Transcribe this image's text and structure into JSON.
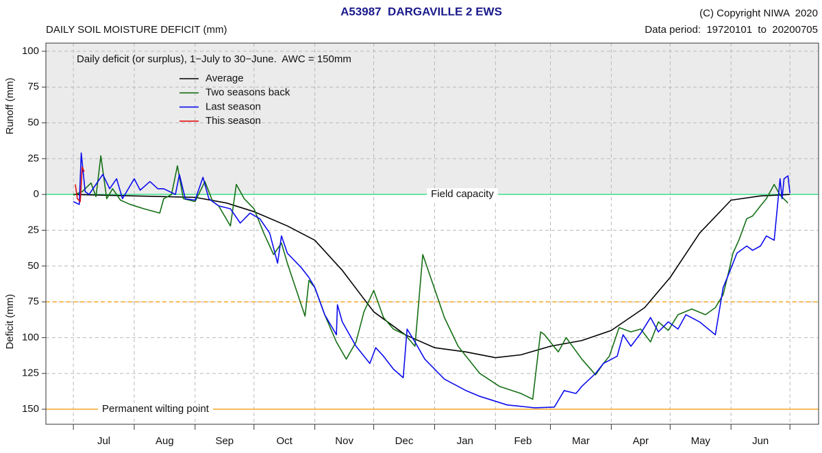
{
  "chart_data": {
    "type": "line",
    "title": "A53987  DARGAVILLE 2 EWS",
    "subtitle": "DAILY SOIL MOISTURE DEFICIT (mm)",
    "copyright": "(C) Copyright NIWA  2020",
    "data_period": "Data period:  19720101  to  20200705",
    "annotation": "Daily deficit (or surplus), 1−July to 30−June.  AWC = 150mm",
    "ylabel_top": "Runoff (mm)",
    "ylabel_bottom": "Deficit (mm)",
    "xlim": [
      -14,
      379.6
    ],
    "xticks": [
      0,
      31,
      62,
      92,
      123,
      153,
      184,
      215,
      243,
      274,
      304,
      335,
      365
    ],
    "months": [
      "Jul",
      "Aug",
      "Sep",
      "Oct",
      "Nov",
      "Dec",
      "Jan",
      "Feb",
      "Mar",
      "Apr",
      "May",
      "Jun"
    ],
    "ylim": [
      -160.5,
      105.7
    ],
    "yticks": [
      100,
      75,
      50,
      25,
      0,
      {
        "value": -25,
        "label": "25"
      },
      {
        "value": -50,
        "label": "50"
      },
      {
        "value": -75,
        "label": "75"
      },
      {
        "value": -100,
        "label": "100"
      },
      {
        "value": -125,
        "label": "125"
      },
      {
        "value": -150,
        "label": "150"
      }
    ],
    "grid": true,
    "surplus_background": "#ebebeb",
    "reference_lines": [
      {
        "value": 0,
        "label": "Field capacity",
        "color": "#3ee08a",
        "dashed": false
      },
      {
        "value": -150,
        "label": "Permanent wilting point",
        "color": "#f5a623",
        "dashed": false
      },
      {
        "value": -75,
        "color": "#f5a623",
        "dashed": true
      }
    ],
    "series": [
      {
        "name": "Average",
        "color": "#000000",
        "x": [
          0,
          31,
          62,
          78,
          92,
          109,
          123,
          137,
          153,
          169,
          184,
          200,
          215,
          228,
          243,
          259,
          274,
          291,
          304,
          319,
          335,
          350,
          365
        ],
        "values": [
          0,
          -1,
          -2,
          -6,
          -12,
          -22,
          -32,
          -53,
          -82,
          -98,
          -107,
          -110,
          -114,
          -112,
          -106,
          -102,
          -95,
          -79,
          -58,
          -27,
          -4,
          -1,
          0
        ]
      },
      {
        "name": "Two seasons back",
        "color": "#146e14",
        "x": [
          0,
          4.5,
          9,
          11.5,
          14,
          17,
          20,
          24,
          29,
          36,
          44,
          46,
          50,
          53,
          56,
          62,
          67,
          71,
          74,
          80,
          83,
          87,
          92,
          97,
          102,
          106,
          109,
          118,
          120,
          123,
          128,
          134,
          139,
          144,
          148,
          153,
          158,
          163,
          169,
          174,
          178,
          182,
          189,
          196,
          207,
          217,
          228,
          234,
          238,
          240,
          247,
          251,
          259,
          266,
          270,
          273,
          278,
          284,
          289,
          294,
          298,
          303,
          308,
          315,
          322,
          327,
          331,
          334,
          336,
          339,
          343,
          346,
          350,
          353,
          357,
          360,
          364
        ],
        "values": [
          -0.5,
          2,
          8,
          -1.5,
          27,
          -3,
          4,
          -4,
          -7,
          -10,
          -13,
          -3,
          0,
          20,
          -3,
          -5,
          9,
          -5,
          -8,
          -22,
          7,
          -3,
          -10,
          -27,
          -42,
          -34,
          -48,
          -85,
          -60,
          -65,
          -84,
          -103,
          -115,
          -103,
          -82,
          -67,
          -86,
          -94,
          -98,
          -106,
          -42,
          -58,
          -86,
          -106,
          -125,
          -134,
          -139,
          -143,
          -96,
          -98,
          -110,
          -100,
          -115,
          -126,
          -118,
          -113,
          -93,
          -96,
          -94,
          -103,
          -89,
          -95,
          -84,
          -80,
          -84,
          -79,
          -70,
          -53,
          -41,
          -32,
          -17,
          -15,
          -8,
          -3,
          7,
          -0.5,
          -6
        ]
      },
      {
        "name": "Last season",
        "color": "#0a0aee",
        "x": [
          0,
          3,
          4,
          6,
          8,
          11.5,
          15,
          18.5,
          22,
          25,
          31,
          34,
          39,
          43,
          46,
          52,
          54,
          57,
          62,
          66,
          69,
          74,
          80,
          85,
          90,
          95,
          100,
          104,
          106,
          109,
          116,
          120,
          123,
          128,
          134,
          134.5,
          137,
          144,
          151,
          154,
          158,
          163,
          168,
          170,
          174,
          179,
          189,
          200,
          207,
          221,
          235,
          245,
          250,
          256,
          259,
          266,
          270,
          277,
          280,
          284,
          289,
          294,
          298,
          303,
          308,
          312,
          319,
          327,
          331,
          334,
          338,
          343,
          346,
          350,
          353,
          357,
          359,
          360,
          361,
          362,
          364,
          365
        ],
        "values": [
          -5,
          -7,
          29,
          2,
          0,
          7,
          14,
          4,
          11,
          -3,
          11,
          3,
          9,
          4,
          4,
          0,
          14,
          -3,
          -4,
          12,
          -3,
          -8,
          -10,
          -20,
          -13,
          -17,
          -27,
          -48,
          -29,
          -41,
          -51,
          -58,
          -65,
          -84,
          -98,
          -77,
          -89,
          -106,
          -118,
          -107,
          -113,
          -122,
          -128,
          -94,
          -103,
          -115,
          -129,
          -137,
          -141,
          -147,
          -149,
          -148.5,
          -137,
          -139,
          -134,
          -125,
          -118,
          -113,
          -98,
          -106,
          -97,
          -86,
          -96,
          -89,
          -94,
          -84,
          -89,
          -98,
          -65,
          -55,
          -41,
          -36,
          -39,
          -36,
          -29,
          -32,
          -3,
          11,
          -3,
          11,
          13,
          1
        ]
      },
      {
        "name": "This season",
        "color": "#e01010",
        "x": [
          1,
          2,
          3.5,
          4.5,
          5.5
        ],
        "values": [
          7,
          -3,
          -5,
          19,
          16
        ]
      }
    ]
  }
}
